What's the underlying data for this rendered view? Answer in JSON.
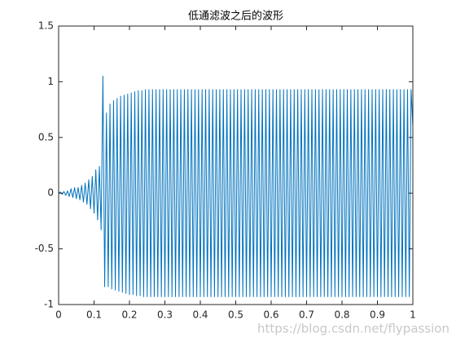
{
  "chart_data": {
    "type": "line",
    "title": "低通滤波之后的波形",
    "watermark": "https://blog.csdn.net/flypassion",
    "xlim": [
      0,
      1
    ],
    "ylim": [
      -1,
      1.5
    ],
    "xticks": [
      0,
      0.1,
      0.2,
      0.3,
      0.4,
      0.5,
      0.6,
      0.7,
      0.8,
      0.9,
      1
    ],
    "yticks": [
      -1,
      -0.5,
      0,
      0.5,
      1,
      1.5
    ],
    "grid": false,
    "x": [
      0,
      0.005,
      0.01,
      0.015,
      0.02,
      0.025,
      0.03,
      0.035,
      0.04,
      0.045,
      0.05,
      0.055,
      0.06,
      0.065,
      0.07,
      0.075,
      0.08,
      0.085,
      0.09,
      0.095,
      0.1,
      0.105,
      0.11,
      0.115,
      0.12,
      0.125,
      0.13,
      0.135,
      0.14,
      0.145,
      0.15,
      0.155,
      0.16,
      0.165,
      0.17,
      0.175,
      0.18,
      0.185,
      0.19,
      0.195,
      0.2,
      0.205,
      0.21,
      0.215,
      0.22,
      0.225,
      0.23,
      0.235,
      0.24,
      0.245,
      0.25,
      0.255,
      0.26,
      0.265,
      0.27,
      0.275,
      0.28,
      0.285,
      0.29,
      0.295,
      0.3,
      0.305,
      0.31,
      0.315,
      0.32,
      0.325,
      0.33,
      0.335,
      0.34,
      0.345,
      0.35,
      0.355,
      0.36,
      0.365,
      0.37,
      0.375,
      0.38,
      0.385,
      0.39,
      0.395,
      0.4,
      0.405,
      0.41,
      0.415,
      0.42,
      0.425,
      0.43,
      0.435,
      0.44,
      0.445,
      0.45,
      0.455,
      0.46,
      0.465,
      0.47,
      0.475,
      0.48,
      0.485,
      0.49,
      0.495,
      0.5,
      0.505,
      0.51,
      0.515,
      0.52,
      0.525,
      0.53,
      0.535,
      0.54,
      0.545,
      0.55,
      0.555,
      0.56,
      0.565,
      0.57,
      0.575,
      0.58,
      0.585,
      0.59,
      0.595,
      0.6,
      0.605,
      0.61,
      0.615,
      0.62,
      0.625,
      0.63,
      0.635,
      0.64,
      0.645,
      0.65,
      0.655,
      0.66,
      0.665,
      0.67,
      0.675,
      0.68,
      0.685,
      0.69,
      0.695,
      0.7,
      0.705,
      0.71,
      0.715,
      0.72,
      0.725,
      0.73,
      0.735,
      0.74,
      0.745,
      0.75,
      0.755,
      0.76,
      0.765,
      0.77,
      0.775,
      0.78,
      0.785,
      0.79,
      0.795,
      0.8,
      0.805,
      0.81,
      0.815,
      0.82,
      0.825,
      0.83,
      0.835,
      0.84,
      0.845,
      0.85,
      0.855,
      0.86,
      0.865,
      0.87,
      0.875,
      0.88,
      0.885,
      0.89,
      0.895,
      0.9,
      0.905,
      0.91,
      0.915,
      0.92,
      0.925,
      0.93,
      0.935,
      0.94,
      0.945,
      0.95,
      0.955,
      0.96,
      0.965,
      0.97,
      0.975,
      0.98,
      0.985,
      0.99,
      0.995,
      1
    ],
    "series": [
      {
        "color": "#0072bd",
        "values": [
          0,
          0.01,
          -0.01,
          0.015,
          -0.02,
          0.02,
          -0.03,
          0.04,
          -0.04,
          0.05,
          -0.05,
          0.05,
          -0.06,
          0.07,
          -0.08,
          0.09,
          -0.1,
          0.12,
          -0.14,
          0.15,
          -0.18,
          0.21,
          -0.24,
          0.24,
          -0.33,
          1.05,
          -0.84,
          0.72,
          -0.84,
          0.8,
          -0.86,
          0.83,
          -0.87,
          0.85,
          -0.88,
          0.87,
          -0.89,
          0.88,
          -0.9,
          0.89,
          -0.91,
          0.9,
          -0.91,
          0.91,
          -0.92,
          0.92,
          -0.92,
          0.92,
          -0.93,
          0.93,
          -0.93,
          0.93,
          -0.93,
          0.93,
          -0.93,
          0.93,
          -0.93,
          0.93,
          -0.93,
          0.93,
          -0.93,
          0.93,
          -0.93,
          0.93,
          -0.93,
          0.93,
          -0.93,
          0.93,
          -0.93,
          0.93,
          -0.93,
          0.93,
          -0.93,
          0.93,
          -0.93,
          0.93,
          -0.93,
          0.93,
          -0.93,
          0.93,
          -0.93,
          0.93,
          -0.93,
          0.93,
          -0.93,
          0.93,
          -0.93,
          0.93,
          -0.93,
          0.93,
          -0.93,
          0.93,
          -0.93,
          0.93,
          -0.93,
          0.93,
          -0.93,
          0.93,
          -0.93,
          0.93,
          -0.93,
          0.93,
          -0.93,
          0.93,
          -0.93,
          0.93,
          -0.93,
          0.93,
          -0.93,
          0.93,
          -0.93,
          0.93,
          -0.93,
          0.93,
          -0.93,
          0.93,
          -0.93,
          0.93,
          -0.93,
          0.93,
          -0.93,
          0.93,
          -0.93,
          0.93,
          -0.93,
          0.93,
          -0.93,
          0.93,
          -0.93,
          0.93,
          -0.93,
          0.93,
          -0.93,
          0.93,
          -0.93,
          0.93,
          -0.93,
          0.93,
          -0.93,
          0.93,
          -0.93,
          0.93,
          -0.93,
          0.93,
          -0.93,
          0.93,
          -0.93,
          0.93,
          -0.93,
          0.93,
          -0.93,
          0.93,
          -0.93,
          0.93,
          -0.93,
          0.93,
          -0.93,
          0.93,
          -0.93,
          0.93,
          -0.93,
          0.93,
          -0.93,
          0.93,
          -0.93,
          0.93,
          -0.93,
          0.93,
          -0.93,
          0.93,
          -0.93,
          0.93,
          -0.93,
          0.93,
          -0.93,
          0.93,
          -0.93,
          0.93,
          -0.93,
          0.93,
          -0.93,
          0.93,
          -0.93,
          0.93,
          -0.93,
          0.93,
          -0.93,
          0.93,
          -0.93,
          0.93,
          -0.93,
          0.93,
          -0.93,
          0.93,
          -0.93,
          0.93,
          -0.93,
          0.93,
          -0.93,
          0.93,
          0.6
        ]
      }
    ]
  }
}
